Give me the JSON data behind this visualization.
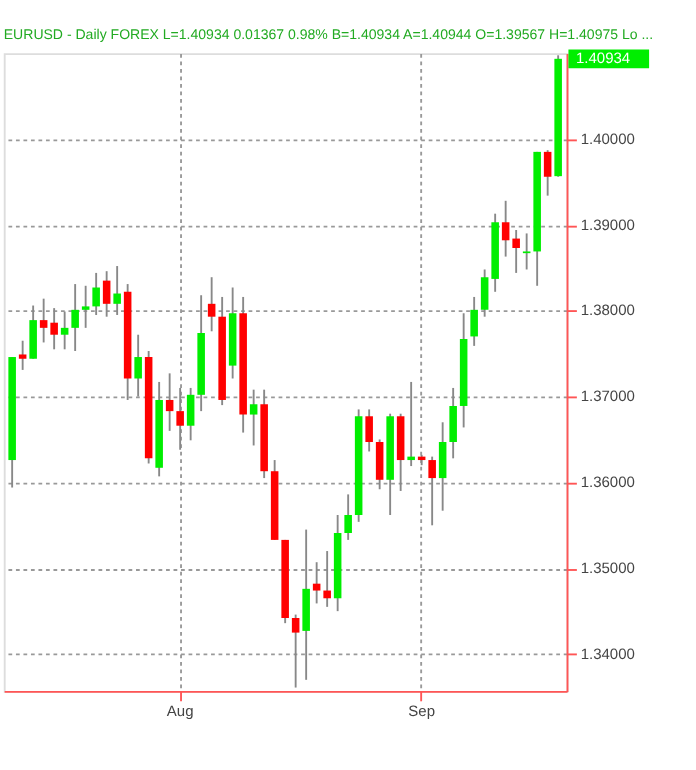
{
  "chart_data": {
    "type": "candlestick",
    "title": "EURUSD - Daily  FOREX  L=1.40934  0.01367  0.98%  B=1.40934  A=1.40944  O=1.39567  H=1.40975  Lo ...",
    "categories": [
      null,
      null,
      null,
      null,
      null,
      null,
      null,
      null,
      null,
      null,
      null,
      null,
      null,
      null,
      null,
      null,
      "Aug",
      null,
      null,
      null,
      null,
      null,
      null,
      null,
      null,
      null,
      null,
      null,
      null,
      null,
      null,
      null,
      null,
      null,
      null,
      null,
      null,
      null,
      null,
      "Sep",
      null,
      null,
      null,
      null,
      null,
      null,
      null,
      null,
      null,
      null,
      null,
      null,
      null
    ],
    "ohlc": [
      [
        1.3626,
        1.3746,
        1.3594,
        1.3746
      ],
      [
        1.3749,
        1.3765,
        1.3731,
        1.3744
      ],
      [
        1.3744,
        1.3806,
        1.3744,
        1.3789
      ],
      [
        1.3789,
        1.3814,
        1.3763,
        1.378
      ],
      [
        1.3786,
        1.3803,
        1.3755,
        1.3772
      ],
      [
        1.3772,
        1.3799,
        1.3755,
        1.378
      ],
      [
        1.378,
        1.3831,
        1.3753,
        1.3801
      ],
      [
        1.3801,
        1.3829,
        1.378,
        1.3805
      ],
      [
        1.3805,
        1.3844,
        1.3795,
        1.3827
      ],
      [
        1.3835,
        1.3846,
        1.3793,
        1.3808
      ],
      [
        1.3808,
        1.3852,
        1.3795,
        1.382
      ],
      [
        1.3822,
        1.3831,
        1.3696,
        1.3721
      ],
      [
        1.3721,
        1.3772,
        1.37,
        1.3746
      ],
      [
        1.3746,
        1.3753,
        1.3622,
        1.3628
      ],
      [
        1.3617,
        1.3717,
        1.3607,
        1.3696
      ],
      [
        1.3696,
        1.3727,
        1.366,
        1.3683
      ],
      [
        1.3683,
        1.371,
        1.3638,
        1.3666
      ],
      [
        1.3666,
        1.371,
        1.3649,
        1.3702
      ],
      [
        1.3702,
        1.3818,
        1.3683,
        1.3774
      ],
      [
        1.3808,
        1.3839,
        1.3776,
        1.3793
      ],
      [
        1.3793,
        1.3816,
        1.369,
        1.3696
      ],
      [
        1.3736,
        1.3827,
        1.3721,
        1.3797
      ],
      [
        1.3797,
        1.3816,
        1.3658,
        1.3679
      ],
      [
        1.3679,
        1.3708,
        1.3643,
        1.3691
      ],
      [
        1.3691,
        1.3708,
        1.3605,
        1.3613
      ],
      [
        1.3613,
        1.3626,
        1.3533,
        1.3533
      ],
      [
        1.3533,
        1.3533,
        1.3436,
        1.3442
      ],
      [
        1.3442,
        1.3446,
        1.3361,
        1.3425
      ],
      [
        1.3427,
        1.3545,
        1.337,
        1.3476
      ],
      [
        1.3482,
        1.3507,
        1.3459,
        1.3474
      ],
      [
        1.3474,
        1.352,
        1.3455,
        1.3465
      ],
      [
        1.3465,
        1.3562,
        1.345,
        1.3541
      ],
      [
        1.3541,
        1.3586,
        1.3533,
        1.3562
      ],
      [
        1.3562,
        1.3685,
        1.3554,
        1.3677
      ],
      [
        1.3677,
        1.3685,
        1.3636,
        1.3647
      ],
      [
        1.3647,
        1.365,
        1.3592,
        1.3603
      ],
      [
        1.3603,
        1.368,
        1.3562,
        1.3677
      ],
      [
        1.3677,
        1.368,
        1.359,
        1.3626
      ],
      [
        1.3626,
        1.3717,
        1.3619,
        1.363
      ],
      [
        1.363,
        1.3632,
        1.362,
        1.3626
      ],
      [
        1.3626,
        1.363,
        1.355,
        1.3605
      ],
      [
        1.3605,
        1.367,
        1.3567,
        1.3647
      ],
      [
        1.3647,
        1.371,
        1.3628,
        1.3689
      ],
      [
        1.3689,
        1.3797,
        1.3664,
        1.3767
      ],
      [
        1.377,
        1.3816,
        1.3759,
        1.3801
      ],
      [
        1.3801,
        1.3848,
        1.3793,
        1.3839
      ],
      [
        1.3837,
        1.3913,
        1.3822,
        1.3903
      ],
      [
        1.3903,
        1.3928,
        1.3863,
        1.3882
      ],
      [
        1.3884,
        1.3894,
        1.3844,
        1.3873
      ],
      [
        1.3867,
        1.389,
        1.3848,
        1.3869
      ],
      [
        1.3869,
        1.3985,
        1.3829,
        1.3985
      ],
      [
        1.3985,
        1.3987,
        1.3934,
        1.3956
      ],
      [
        1.39567,
        1.40975,
        1.3956,
        1.40934
      ]
    ],
    "colors": [
      "#00ee00",
      "#ff0000",
      "#00ee00",
      "#ff0000",
      "#ff0000",
      "#00ee00",
      "#00ee00",
      "#00ee00",
      "#00ee00",
      "#ff0000",
      "#00ee00",
      "#ff0000",
      "#00ee00",
      "#ff0000",
      "#00ee00",
      "#ff0000",
      "#ff0000",
      "#00ee00",
      "#00ee00",
      "#ff0000",
      "#ff0000",
      "#00ee00",
      "#ff0000",
      "#00ee00",
      "#ff0000",
      "#ff0000",
      "#ff0000",
      "#ff0000",
      "#00ee00",
      "#ff0000",
      "#ff0000",
      "#00ee00",
      "#00ee00",
      "#00ee00",
      "#ff0000",
      "#ff0000",
      "#00ee00",
      "#ff0000",
      "#00ee00",
      "#ff0000",
      "#ff0000",
      "#00ee00",
      "#00ee00",
      "#00ee00",
      "#00ee00",
      "#00ee00",
      "#00ee00",
      "#ff0000",
      "#ff0000",
      "#00ee00",
      "#00ee00",
      "#ff0000",
      "#00ee00"
    ],
    "ylim": [
      1.3357,
      1.41
    ],
    "yticks": [
      {
        "value": 1.34,
        "label": "1.34000"
      },
      {
        "value": 1.35,
        "label": "1.35000"
      },
      {
        "value": 1.36,
        "label": "1.36000"
      },
      {
        "value": 1.37,
        "label": "1.37000"
      },
      {
        "value": 1.38,
        "label": "1.38000"
      },
      {
        "value": 1.39,
        "label": "1.39000"
      },
      {
        "value": 1.4,
        "label": "1.40000"
      }
    ],
    "annotations": [
      "1.40934"
    ],
    "grid": true
  }
}
